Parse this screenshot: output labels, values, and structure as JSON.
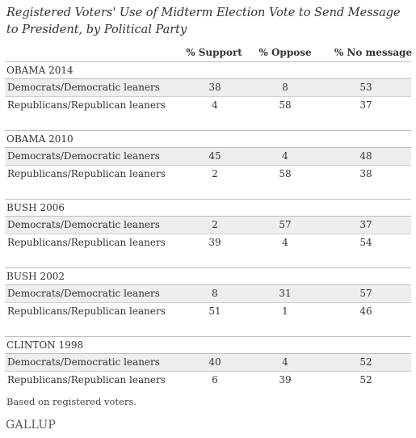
{
  "chart_data": {
    "type": "table",
    "title": "Registered Voters' Use of Midterm Election Vote to Send Message to President, by Political Party",
    "columns": [
      "% Support",
      "% Oppose",
      "% No message"
    ],
    "groups": [
      {
        "name": "OBAMA 2014",
        "rows": [
          {
            "label": "Democrats/Democratic leaners",
            "values": [
              "38",
              "8",
              "53"
            ]
          },
          {
            "label": "Republicans/Republican leaners",
            "values": [
              "4",
              "58",
              "37"
            ]
          }
        ]
      },
      {
        "name": "OBAMA 2010",
        "rows": [
          {
            "label": "Democrats/Democratic leaners",
            "values": [
              "45",
              "4",
              "48"
            ]
          },
          {
            "label": "Republicans/Republican leaners",
            "values": [
              "2",
              "58",
              "38"
            ]
          }
        ]
      },
      {
        "name": "BUSH 2006",
        "rows": [
          {
            "label": "Democrats/Democratic leaners",
            "values": [
              "2",
              "57",
              "37"
            ]
          },
          {
            "label": "Republicans/Republican leaners",
            "values": [
              "39",
              "4",
              "54"
            ]
          }
        ]
      },
      {
        "name": "BUSH 2002",
        "rows": [
          {
            "label": "Democrats/Democratic leaners",
            "values": [
              "8",
              "31",
              "57"
            ]
          },
          {
            "label": "Republicans/Republican leaners",
            "values": [
              "51",
              "1",
              "46"
            ]
          }
        ]
      },
      {
        "name": "CLINTON 1998",
        "rows": [
          {
            "label": "Democrats/Democratic leaners",
            "values": [
              "40",
              "4",
              "52"
            ]
          },
          {
            "label": "Republicans/Republican leaners",
            "values": [
              "6",
              "39",
              "52"
            ]
          }
        ]
      }
    ],
    "note": "Based on registered voters."
  },
  "source": "GALLUP"
}
